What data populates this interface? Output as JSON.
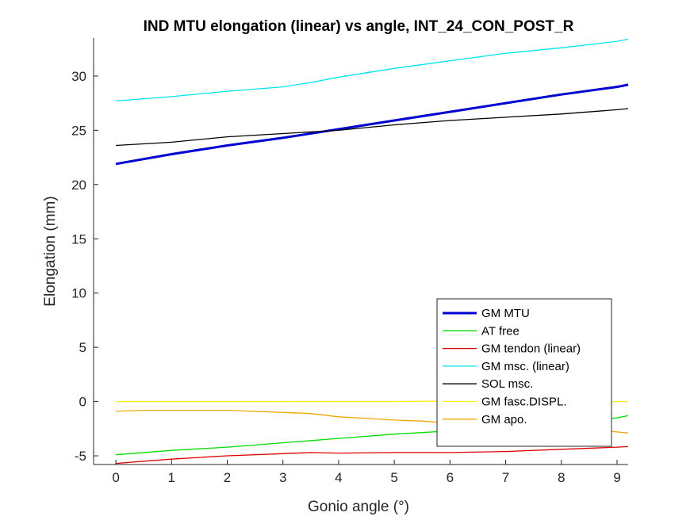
{
  "chart_data": {
    "type": "line",
    "title": "IND MTU elongation (linear) vs angle, INT_24_CON_POST_R",
    "xlabel": "Gonio angle (°)",
    "ylabel": "Elongation (mm)",
    "xlim": [
      -0.4,
      9.2
    ],
    "ylim": [
      -5.8,
      33.5
    ],
    "xticks": [
      0,
      1,
      2,
      3,
      4,
      5,
      6,
      7,
      8,
      9
    ],
    "yticks": [
      -5,
      0,
      5,
      10,
      15,
      20,
      25,
      30
    ],
    "grid": false,
    "legend_position": "bottom-right",
    "series": [
      {
        "name": "GM MTU",
        "color": "#0000d0",
        "width": 3,
        "x": [
          0,
          1,
          2,
          3,
          4,
          5,
          6,
          7,
          8,
          9,
          9.2
        ],
        "y": [
          21.9,
          22.8,
          23.6,
          24.3,
          25.1,
          25.9,
          26.7,
          27.5,
          28.3,
          29.0,
          29.2
        ]
      },
      {
        "name": "AT free",
        "color": "#00dd00",
        "width": 1.3,
        "x": [
          0,
          1,
          2,
          3,
          4,
          5,
          6,
          7,
          8,
          9,
          9.2
        ],
        "y": [
          -4.9,
          -4.5,
          -4.2,
          -3.8,
          -3.4,
          -3.0,
          -2.7,
          -2.3,
          -2.0,
          -1.5,
          -1.3
        ]
      },
      {
        "name": "GM tendon (linear)",
        "color": "#e00000",
        "width": 1.3,
        "x": [
          0,
          1,
          2,
          3,
          3.5,
          4,
          5,
          6,
          7,
          8,
          9,
          9.2
        ],
        "y": [
          -5.7,
          -5.3,
          -5.0,
          -4.8,
          -4.7,
          -4.75,
          -4.7,
          -4.7,
          -4.6,
          -4.4,
          -4.2,
          -4.15
        ]
      },
      {
        "name": "GM msc. (linear)",
        "color": "#00e6ee",
        "width": 1.3,
        "x": [
          0,
          1,
          2,
          3,
          3.5,
          4,
          5,
          6,
          7,
          8,
          9,
          9.2
        ],
        "y": [
          27.7,
          28.1,
          28.6,
          29.0,
          29.4,
          29.9,
          30.7,
          31.4,
          32.1,
          32.6,
          33.2,
          33.4
        ]
      },
      {
        "name": "SOL msc.",
        "color": "#000000",
        "width": 1.3,
        "x": [
          0,
          1,
          2,
          3,
          4,
          5,
          6,
          7,
          8,
          9,
          9.2
        ],
        "y": [
          23.6,
          23.9,
          24.4,
          24.7,
          25.0,
          25.5,
          25.9,
          26.2,
          26.5,
          26.9,
          27.0
        ]
      },
      {
        "name": "GM fasc.DISPL.",
        "color": "#ffee00",
        "width": 1.3,
        "x": [
          0,
          1,
          2,
          3,
          4,
          5,
          6,
          7,
          8,
          9,
          9.2
        ],
        "y": [
          0.0,
          0.0,
          0.0,
          0.0,
          0.0,
          0.0,
          0.05,
          0.05,
          0.0,
          0.0,
          0.0
        ]
      },
      {
        "name": "GM apo.",
        "color": "#f0a800",
        "width": 1.3,
        "x": [
          0,
          0.5,
          1,
          2,
          3,
          3.5,
          4,
          5,
          5.5,
          6,
          7,
          8,
          9,
          9.2
        ],
        "y": [
          -0.9,
          -0.8,
          -0.8,
          -0.8,
          -1.0,
          -1.1,
          -1.4,
          -1.7,
          -1.8,
          -2.0,
          -2.1,
          -2.4,
          -2.8,
          -2.9
        ]
      }
    ]
  }
}
